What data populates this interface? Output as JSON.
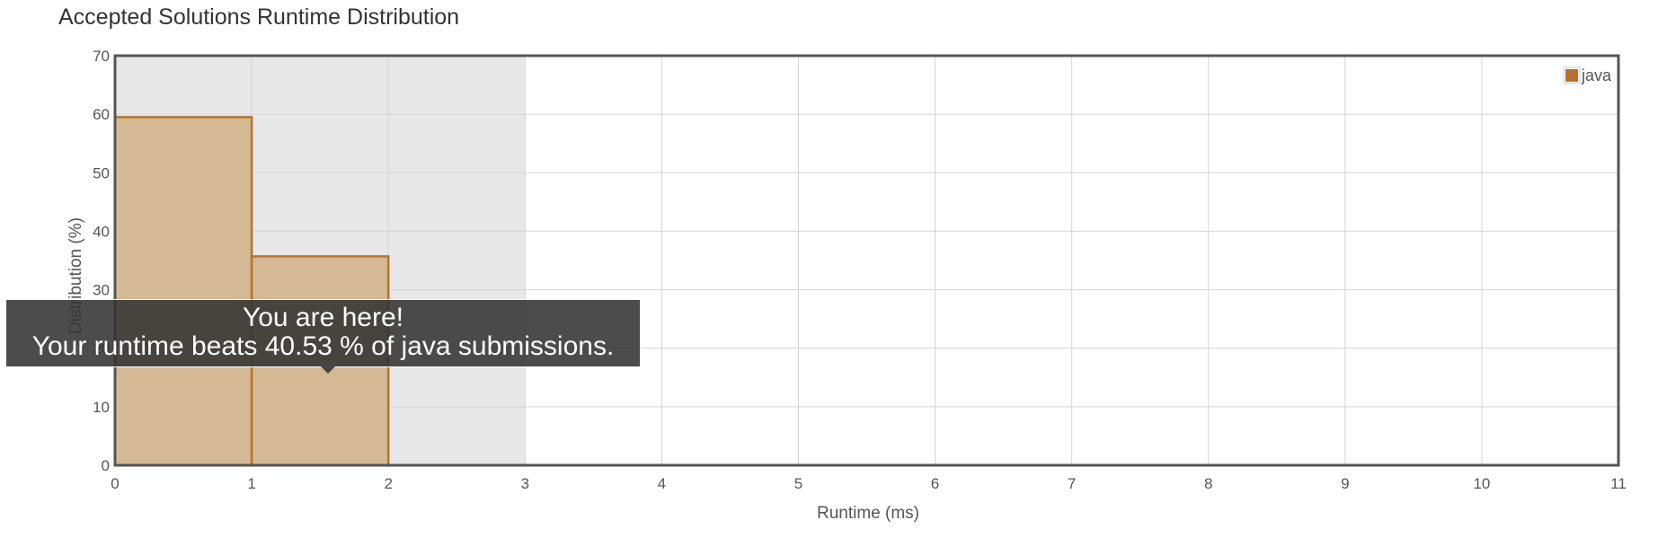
{
  "chart_data": {
    "type": "bar",
    "title": "Accepted Solutions Runtime Distribution",
    "xlabel": "Runtime (ms)",
    "ylabel": "Distribution (%)",
    "xlim": [
      0,
      11
    ],
    "ylim": [
      0,
      70
    ],
    "x_ticks": [
      0,
      1,
      2,
      3,
      4,
      5,
      6,
      7,
      8,
      9,
      10,
      11
    ],
    "y_ticks": [
      0,
      10,
      20,
      30,
      40,
      50,
      60,
      70
    ],
    "grid": true,
    "highlight_range": [
      0,
      3
    ],
    "legend": {
      "position": "top-right",
      "entries": [
        {
          "name": "java",
          "color": "#b5732f"
        }
      ]
    },
    "series": [
      {
        "name": "java",
        "color": "#b5732f",
        "fill": "#d4b994",
        "bins": [
          {
            "x0": 0,
            "x1": 1,
            "value": 59.5
          },
          {
            "x0": 1,
            "x1": 2,
            "value": 35.7
          }
        ]
      }
    ]
  },
  "tooltip": {
    "line1": "You are here!",
    "line2": "Your runtime beats 40.53 % of java submissions."
  },
  "colors": {
    "highlight": "#e8e8e8",
    "grid": "#d4d4d4",
    "axis": "#555555",
    "text": "#555555"
  }
}
